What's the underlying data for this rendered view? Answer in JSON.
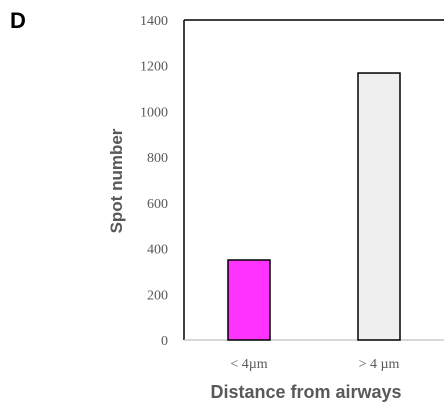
{
  "panel_label": "D",
  "chart_data": {
    "type": "bar",
    "title": "",
    "xlabel": "Distance from airways",
    "ylabel": "Spot number",
    "categories": [
      "< 4µm",
      "> 4 µm"
    ],
    "values": [
      350,
      1168
    ],
    "bar_colors": [
      "#ff33ff",
      "#efefef"
    ],
    "ylim": [
      0,
      1400
    ],
    "yticks": [
      0,
      200,
      400,
      600,
      800,
      1000,
      1200,
      1400
    ],
    "grid": false,
    "legend": "none"
  }
}
